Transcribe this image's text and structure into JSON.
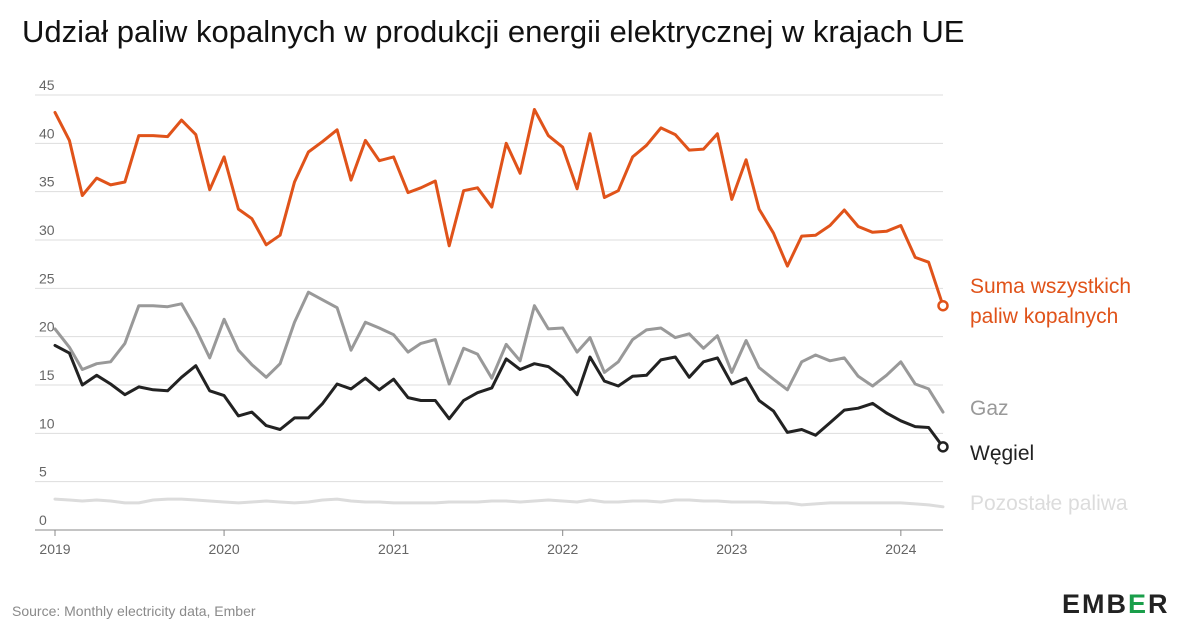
{
  "title": "Udział paliw kopalnych w produkcji energii elektrycznej w krajach UE",
  "source": "Source: Monthly electricity data, Ember",
  "logo": "EMBER",
  "chart_data": {
    "type": "line",
    "title": "Udział paliw kopalnych w produkcji energii elektrycznej w krajach UE",
    "xlabel": "",
    "ylabel": "",
    "x_start": "2019-01",
    "x_end": "2024-04",
    "x_ticks": [
      "2019",
      "2020",
      "2021",
      "2022",
      "2023",
      "2024"
    ],
    "y_ticks": [
      "0",
      "5",
      "10",
      "15",
      "20",
      "25",
      "30",
      "35",
      "40",
      "45"
    ],
    "ylim": [
      0,
      45
    ],
    "grid": true,
    "series": [
      {
        "name": "Suma wszystkich paliw kopalnych",
        "label_lines": [
          "Suma wszystkich",
          "paliw kopalnych"
        ],
        "color": "#e0531a",
        "end_marker": true,
        "values": [
          43.2,
          40.3,
          34.6,
          36.4,
          35.7,
          36.0,
          40.8,
          40.8,
          40.7,
          42.4,
          40.9,
          35.2,
          38.6,
          33.2,
          32.2,
          29.5,
          30.5,
          36.0,
          39.1,
          40.2,
          41.4,
          36.2,
          40.3,
          38.2,
          38.6,
          34.9,
          35.4,
          36.1,
          29.4,
          35.1,
          35.4,
          33.4,
          40.0,
          36.9,
          43.5,
          40.8,
          39.6,
          35.3,
          41.0,
          34.4,
          35.1,
          38.6,
          39.8,
          41.6,
          40.9,
          39.3,
          39.4,
          41.0,
          34.2,
          38.3,
          33.2,
          30.7,
          27.3,
          30.4,
          30.5,
          31.5,
          33.1,
          31.4,
          30.8,
          30.9,
          31.5,
          28.2,
          27.7,
          23.2
        ]
      },
      {
        "name": "Gaz",
        "label_lines": [
          "Gaz"
        ],
        "color": "#999999",
        "end_marker": false,
        "values": [
          20.8,
          18.9,
          16.6,
          17.2,
          17.4,
          19.3,
          23.2,
          23.2,
          23.1,
          23.4,
          20.8,
          17.8,
          21.8,
          18.6,
          17.1,
          15.8,
          17.2,
          21.5,
          24.6,
          23.8,
          23.0,
          18.6,
          21.5,
          20.9,
          20.2,
          18.4,
          19.3,
          19.7,
          15.1,
          18.8,
          18.2,
          15.7,
          19.2,
          17.5,
          23.2,
          20.8,
          20.9,
          18.4,
          19.9,
          16.3,
          17.4,
          19.7,
          20.7,
          20.9,
          19.9,
          20.3,
          18.8,
          20.1,
          16.3,
          19.6,
          16.8,
          15.6,
          14.5,
          17.4,
          18.1,
          17.5,
          17.8,
          15.9,
          14.9,
          16.0,
          17.4,
          15.1,
          14.6,
          12.2
        ]
      },
      {
        "name": "Węgiel",
        "label_lines": [
          "Węgiel"
        ],
        "color": "#222222",
        "end_marker": true,
        "values": [
          19.1,
          18.3,
          15.0,
          16.0,
          15.1,
          14.0,
          14.8,
          14.5,
          14.4,
          15.8,
          17.0,
          14.4,
          13.9,
          11.8,
          12.2,
          10.8,
          10.4,
          11.6,
          11.6,
          13.1,
          15.1,
          14.6,
          15.7,
          14.5,
          15.6,
          13.7,
          13.4,
          13.4,
          11.5,
          13.4,
          14.2,
          14.7,
          17.7,
          16.6,
          17.2,
          16.9,
          15.8,
          14.0,
          17.9,
          15.4,
          14.9,
          15.9,
          16.0,
          17.6,
          17.9,
          15.8,
          17.4,
          17.8,
          15.1,
          15.7,
          13.4,
          12.3,
          10.1,
          10.4,
          9.8,
          11.1,
          12.4,
          12.6,
          13.1,
          12.1,
          11.3,
          10.7,
          10.6,
          8.6
        ]
      },
      {
        "name": "Pozostałe paliwa",
        "label_lines": [
          "Pozostałe paliwa"
        ],
        "color": "#dcdcdc",
        "end_marker": false,
        "values": [
          3.2,
          3.1,
          3.0,
          3.1,
          3.0,
          2.8,
          2.8,
          3.1,
          3.2,
          3.2,
          3.1,
          3.0,
          2.9,
          2.8,
          2.9,
          3.0,
          2.9,
          2.8,
          2.9,
          3.1,
          3.2,
          3.0,
          2.9,
          2.9,
          2.8,
          2.8,
          2.8,
          2.8,
          2.9,
          2.9,
          2.9,
          3.0,
          3.0,
          2.9,
          3.0,
          3.1,
          3.0,
          2.9,
          3.1,
          2.9,
          2.9,
          3.0,
          3.0,
          2.9,
          3.1,
          3.1,
          3.0,
          3.0,
          2.9,
          2.9,
          2.9,
          2.8,
          2.8,
          2.6,
          2.7,
          2.8,
          2.8,
          2.8,
          2.8,
          2.8,
          2.8,
          2.7,
          2.6,
          2.4
        ]
      }
    ]
  }
}
